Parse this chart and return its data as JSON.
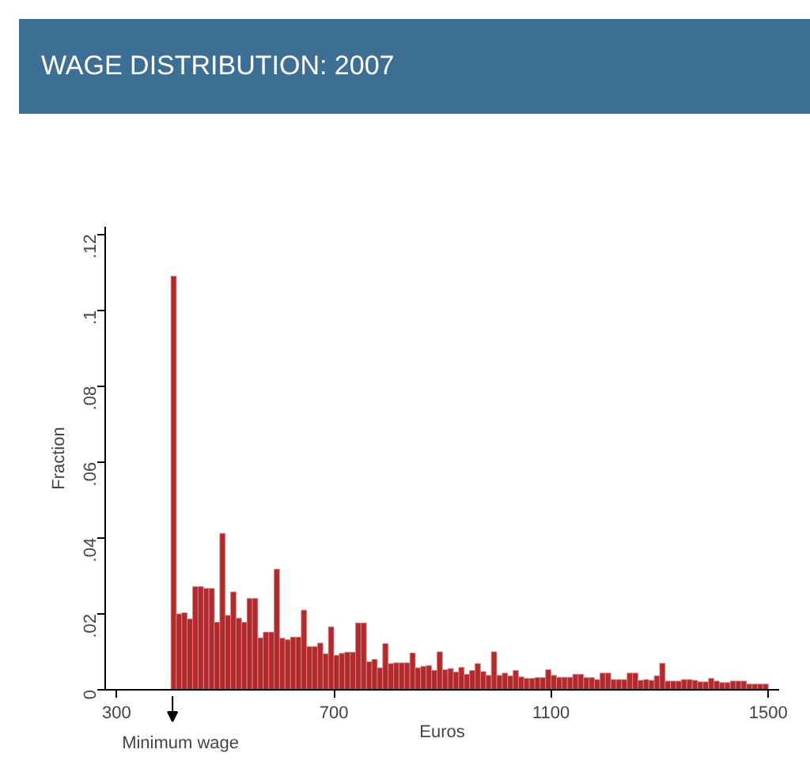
{
  "chart_data": {
    "type": "histogram",
    "title": "WAGE DISTRIBUTION: 2007",
    "xlabel": "Euros",
    "ylabel": "Fraction",
    "annotations": [
      {
        "text": "Minimum wage",
        "x": 403,
        "y": 0
      }
    ],
    "bins": [
      400,
      410,
      420,
      430,
      440,
      450,
      460,
      470,
      480,
      490,
      500,
      510,
      520,
      530,
      540,
      550,
      560,
      570,
      580,
      590,
      600,
      610,
      620,
      630,
      640,
      650,
      660,
      670,
      680,
      690,
      700,
      710,
      720,
      730,
      740,
      750,
      760,
      770,
      780,
      790,
      800,
      810,
      820,
      830,
      840,
      850,
      860,
      870,
      880,
      890,
      900,
      910,
      920,
      930,
      940,
      950,
      960,
      970,
      980,
      990,
      1000,
      1010,
      1020,
      1030,
      1040,
      1050,
      1060,
      1070,
      1080,
      1090,
      1100,
      1110,
      1120,
      1130,
      1140,
      1150,
      1160,
      1170,
      1180,
      1190,
      1200,
      1210,
      1220,
      1230,
      1240,
      1250,
      1260,
      1270,
      1280,
      1290,
      1300,
      1310,
      1320,
      1330,
      1340,
      1350,
      1360,
      1370,
      1380,
      1390,
      1400,
      1410,
      1420,
      1430,
      1440,
      1450,
      1460,
      1470,
      1480,
      1490,
      1500
    ],
    "values": [
      0.109,
      0.02,
      0.0203,
      0.0187,
      0.0272,
      0.0272,
      0.0267,
      0.0267,
      0.0178,
      0.0412,
      0.0196,
      0.0258,
      0.0189,
      0.0178,
      0.0241,
      0.0241,
      0.0137,
      0.0152,
      0.0152,
      0.0318,
      0.0136,
      0.0132,
      0.0139,
      0.0139,
      0.021,
      0.0114,
      0.0114,
      0.0123,
      0.0095,
      0.0166,
      0.0091,
      0.0096,
      0.0099,
      0.0099,
      0.0176,
      0.0176,
      0.0074,
      0.008,
      0.0058,
      0.0122,
      0.0069,
      0.0071,
      0.0071,
      0.0071,
      0.0097,
      0.0058,
      0.0062,
      0.0064,
      0.0051,
      0.01,
      0.0053,
      0.0056,
      0.0047,
      0.0059,
      0.0041,
      0.0051,
      0.0069,
      0.0048,
      0.0038,
      0.01,
      0.0038,
      0.0044,
      0.0037,
      0.0051,
      0.0034,
      0.003,
      0.003,
      0.0032,
      0.0032,
      0.0053,
      0.0038,
      0.0033,
      0.0033,
      0.0033,
      0.0041,
      0.0041,
      0.0032,
      0.0032,
      0.0027,
      0.0044,
      0.0044,
      0.0027,
      0.0027,
      0.0027,
      0.0044,
      0.0044,
      0.0025,
      0.0027,
      0.0025,
      0.0037,
      0.007,
      0.0023,
      0.0023,
      0.0023,
      0.0027,
      0.0027,
      0.0025,
      0.0021,
      0.0021,
      0.003,
      0.0023,
      0.0019,
      0.0019,
      0.0023,
      0.0023,
      0.0023,
      0.0015,
      0.0015,
      0.0015,
      0.0015
    ],
    "color": "#b22a2e",
    "xlim": [
      279,
      1520
    ],
    "xticks": [
      300,
      700,
      1100,
      1500
    ],
    "ylim": [
      0,
      0.122
    ],
    "yticks": [
      {
        "value": 0,
        "label": "0"
      },
      {
        "value": 0.02,
        "label": ".02"
      },
      {
        "value": 0.04,
        "label": ".04"
      },
      {
        "value": 0.06,
        "label": ".06"
      },
      {
        "value": 0.08,
        "label": ".08"
      },
      {
        "value": 0.1,
        "label": ".1"
      },
      {
        "value": 0.12,
        "label": ".12"
      }
    ],
    "grid": false
  }
}
